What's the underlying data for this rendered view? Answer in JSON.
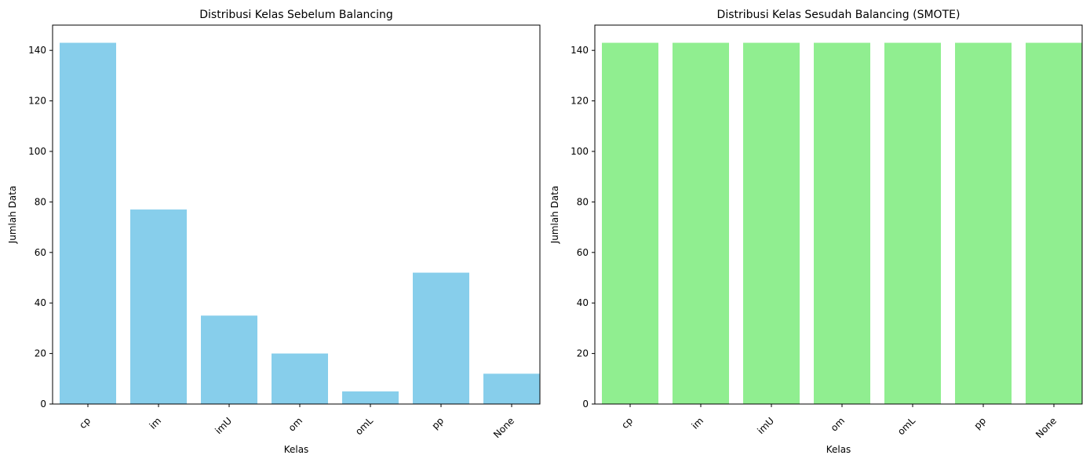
{
  "chart_data": [
    {
      "type": "bar",
      "title": "Distribusi Kelas Sebelum Balancing",
      "xlabel": "Kelas",
      "ylabel": "Jumlah Data",
      "categories": [
        "cp",
        "im",
        "imU",
        "om",
        "omL",
        "pp",
        "None"
      ],
      "values": [
        143,
        77,
        35,
        20,
        5,
        52,
        12
      ],
      "ylim": [
        0,
        150
      ],
      "yticks": [
        0,
        20,
        40,
        60,
        80,
        100,
        120,
        140
      ],
      "bar_color": "#87ceeb",
      "grid": false
    },
    {
      "type": "bar",
      "title": "Distribusi Kelas Sesudah Balancing (SMOTE)",
      "xlabel": "Kelas",
      "ylabel": "Jumlah Data",
      "categories": [
        "cp",
        "im",
        "imU",
        "om",
        "omL",
        "pp",
        "None"
      ],
      "values": [
        143,
        143,
        143,
        143,
        143,
        143,
        143
      ],
      "ylim": [
        0,
        150
      ],
      "yticks": [
        0,
        20,
        40,
        60,
        80,
        100,
        120,
        140
      ],
      "bar_color": "#90ee90",
      "grid": false
    }
  ]
}
